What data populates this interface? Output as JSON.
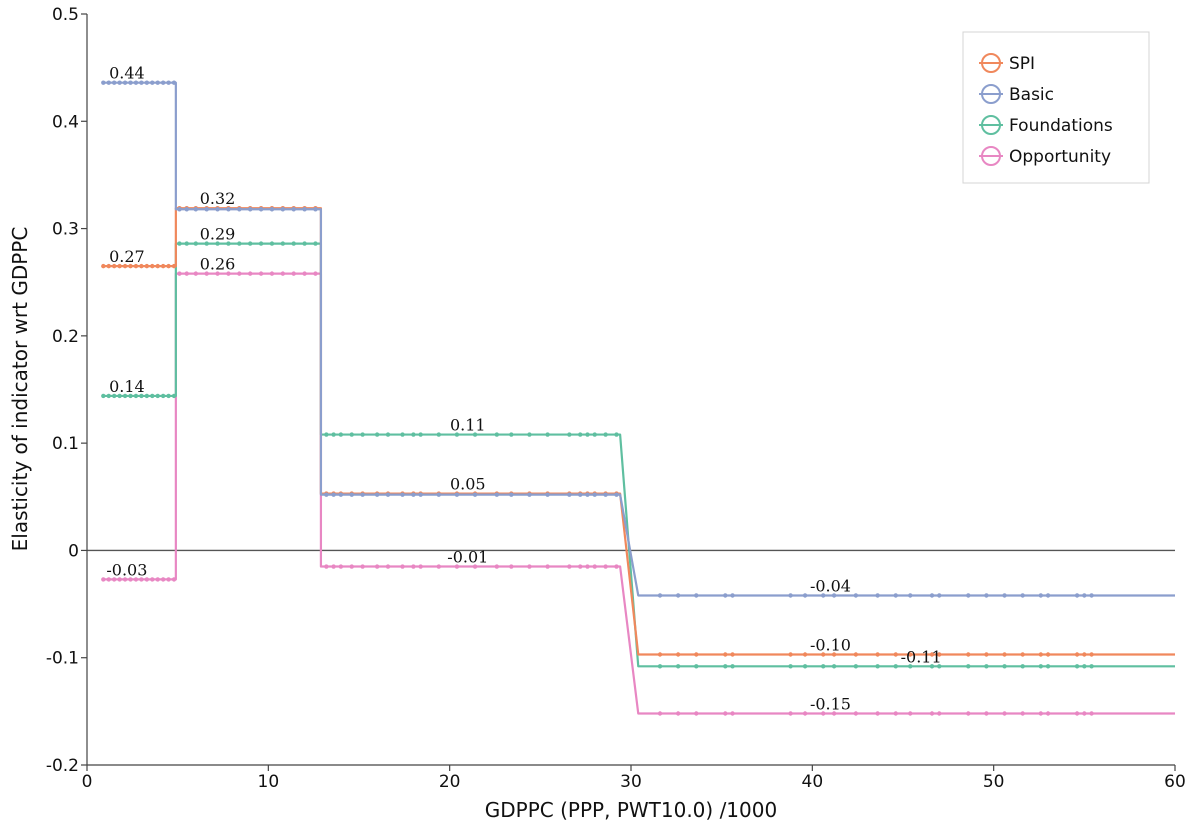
{
  "chart_data": {
    "type": "line",
    "title": "",
    "xlabel": "GDPPC (PPP, PWT10.0) /1000",
    "ylabel": "Elasticity of indicator wrt GDPPC",
    "xlim": [
      0,
      60
    ],
    "ylim": [
      -0.2,
      0.5
    ],
    "xticks": [
      0,
      10,
      20,
      30,
      40,
      50,
      60
    ],
    "xtick_labels": [
      "0",
      "10",
      "20",
      "30",
      "40",
      "50",
      "60"
    ],
    "yticks": [
      -0.2,
      -0.1,
      0,
      0.1,
      0.2,
      0.3,
      0.4,
      0.5
    ],
    "ytick_labels": [
      "-0.2",
      "-0.1",
      "0",
      "0.1",
      "0.2",
      "0.3",
      "0.4",
      "0.5"
    ],
    "grid": false,
    "zero_line": true,
    "legend_position": "top-right",
    "x_steps": [
      0.8,
      4.9,
      12.9,
      29.4,
      30.4,
      60
    ],
    "series": [
      {
        "name": "SPI",
        "color": "#f0885c",
        "segments": [
          {
            "x0": 0.8,
            "x1": 4.9,
            "y": 0.265
          },
          {
            "x0": 4.9,
            "x1": 12.9,
            "y": 0.319
          },
          {
            "x0": 12.9,
            "x1": 29.4,
            "y": 0.053
          },
          {
            "x0": 30.4,
            "x1": 60,
            "y": -0.097
          }
        ]
      },
      {
        "name": "Basic",
        "color": "#8b9ecd",
        "segments": [
          {
            "x0": 0.8,
            "x1": 4.9,
            "y": 0.436
          },
          {
            "x0": 4.9,
            "x1": 12.9,
            "y": 0.318
          },
          {
            "x0": 12.9,
            "x1": 29.4,
            "y": 0.052
          },
          {
            "x0": 30.4,
            "x1": 60,
            "y": -0.042
          }
        ]
      },
      {
        "name": "Foundations",
        "color": "#5fbfa0",
        "segments": [
          {
            "x0": 0.8,
            "x1": 4.9,
            "y": 0.144
          },
          {
            "x0": 4.9,
            "x1": 12.9,
            "y": 0.286
          },
          {
            "x0": 12.9,
            "x1": 29.4,
            "y": 0.108
          },
          {
            "x0": 30.4,
            "x1": 60,
            "y": -0.108
          }
        ]
      },
      {
        "name": "Opportunity",
        "color": "#e887c3",
        "segments": [
          {
            "x0": 0.8,
            "x1": 4.9,
            "y": -0.027
          },
          {
            "x0": 4.9,
            "x1": 12.9,
            "y": 0.258
          },
          {
            "x0": 12.9,
            "x1": 29.4,
            "y": -0.015
          },
          {
            "x0": 30.4,
            "x1": 60,
            "y": -0.152
          }
        ]
      }
    ],
    "marker_x": [
      0.9,
      1.2,
      1.5,
      1.8,
      2.1,
      2.4,
      2.7,
      3.0,
      3.3,
      3.6,
      3.9,
      4.2,
      4.5,
      4.8,
      5.1,
      5.5,
      6.0,
      6.6,
      7.2,
      7.8,
      8.4,
      9.0,
      9.6,
      10.2,
      10.8,
      11.4,
      12.0,
      12.6,
      13.2,
      13.6,
      14.0,
      14.6,
      15.2,
      16.0,
      16.6,
      17.4,
      18.0,
      18.4,
      19.4,
      20.4,
      21.4,
      22.6,
      23.4,
      24.4,
      25.4,
      26.6,
      27.2,
      27.6,
      28.0,
      28.6,
      29.2,
      31.6,
      32.6,
      33.6,
      35.2,
      35.6,
      38.8,
      39.6,
      40.6,
      41.2,
      42.4,
      43.6,
      44.6,
      45.4,
      46.6,
      47.0,
      48.6,
      49.6,
      50.6,
      51.6,
      52.6,
      53.0,
      54.6,
      55.0,
      55.4
    ],
    "annotations": [
      {
        "text": "0.44",
        "x": 2.2,
        "y": 0.436
      },
      {
        "text": "0.32",
        "x": 7.2,
        "y": 0.319
      },
      {
        "text": "0.29",
        "x": 7.2,
        "y": 0.286
      },
      {
        "text": "0.27",
        "x": 2.2,
        "y": 0.265
      },
      {
        "text": "0.26",
        "x": 7.2,
        "y": 0.258
      },
      {
        "text": "0.14",
        "x": 2.2,
        "y": 0.144
      },
      {
        "text": "0.11",
        "x": 21.0,
        "y": 0.108
      },
      {
        "text": "0.05",
        "x": 21.0,
        "y": 0.053
      },
      {
        "text": "-0.01",
        "x": 21.0,
        "y": -0.015
      },
      {
        "text": "-0.03",
        "x": 2.2,
        "y": -0.027
      },
      {
        "text": "-0.04",
        "x": 41.0,
        "y": -0.042
      },
      {
        "text": "-0.10",
        "x": 41.0,
        "y": -0.097
      },
      {
        "text": "-0.11",
        "x": 46.0,
        "y": -0.108
      },
      {
        "text": "-0.15",
        "x": 41.0,
        "y": -0.152
      }
    ]
  }
}
